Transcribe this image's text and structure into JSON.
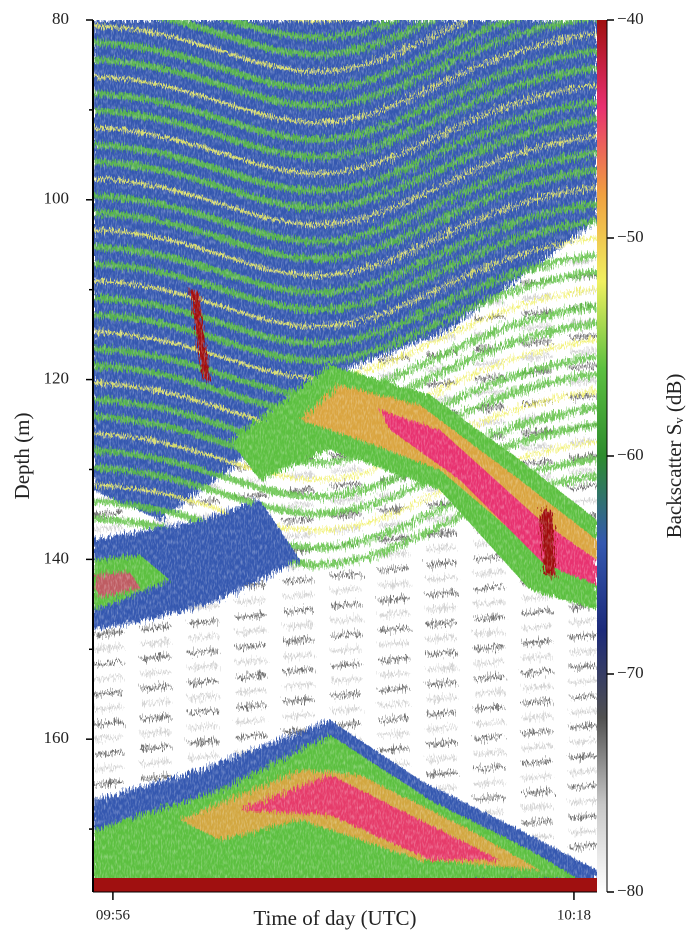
{
  "chart_data": {
    "type": "echogram",
    "xlabel": "Time of day (UTC)",
    "ylabel": "Depth (m)",
    "xlim": [
      595.05,
      619.1
    ],
    "xticks": [
      {
        "value": 596,
        "label": "09:56"
      },
      {
        "value": 618,
        "label": "10:18"
      }
    ],
    "ylim": [
      80,
      177
    ],
    "y_inverted": true,
    "yticks": [
      80,
      100,
      120,
      140,
      160
    ],
    "yminorticks": [
      90,
      110,
      130,
      150,
      170
    ],
    "colorbar": {
      "label": "Backscatter Sᵥ (dB)",
      "clim": [
        -80,
        -40
      ],
      "ticks": [
        {
          "value": -40,
          "label": "−40"
        },
        {
          "value": -50,
          "label": "−50"
        },
        {
          "value": -60,
          "label": "−60"
        },
        {
          "value": -70,
          "label": "−70"
        },
        {
          "value": -80,
          "label": "−80"
        }
      ],
      "colormap": [
        "#ffffff",
        "#c8c8c8",
        "#505050",
        "#1c2a7a",
        "#3458b0",
        "#2e8c2e",
        "#5cc040",
        "#f0f060",
        "#f0a040",
        "#e83070",
        "#a01010"
      ]
    }
  }
}
